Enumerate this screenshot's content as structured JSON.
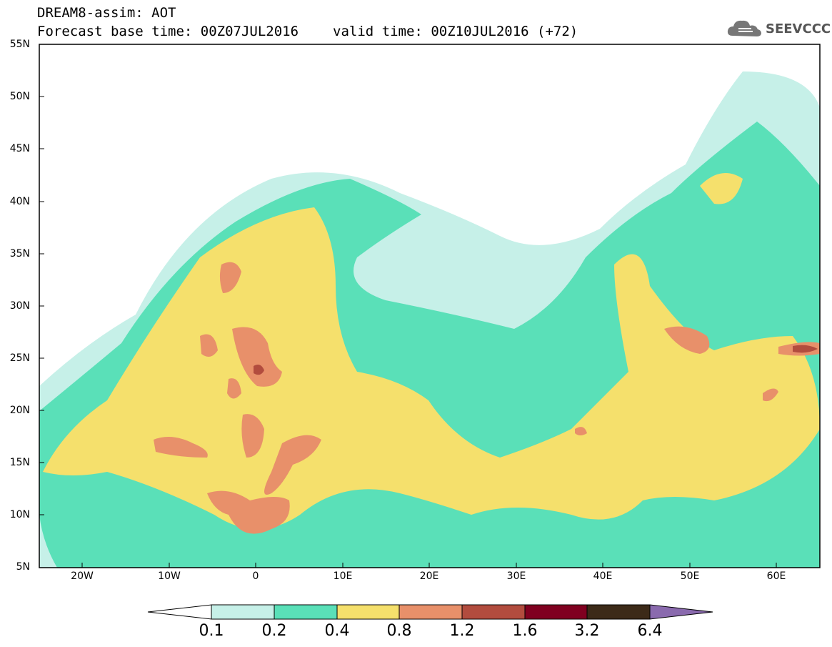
{
  "header": {
    "title_line1": "DREAM8-assim: AOT",
    "base_time": "Forecast base time: 00Z07JUL2016",
    "valid_time": "valid time: 00Z10JUL2016 (+72)"
  },
  "logo": {
    "text": "SEEVCCC",
    "icon": "cloud-icon"
  },
  "map": {
    "lat_labels": [
      "55N",
      "50N",
      "45N",
      "40N",
      "35N",
      "30N",
      "25N",
      "20N",
      "15N",
      "10N",
      "5N"
    ],
    "lon_labels": [
      "20W",
      "10W",
      "0",
      "10E",
      "20E",
      "30E",
      "40E",
      "50E",
      "60E"
    ],
    "lat_range": [
      5,
      55
    ],
    "lon_range": [
      -25,
      65
    ]
  },
  "legend": {
    "labels": [
      "0.1",
      "0.2",
      "0.4",
      "0.8",
      "1.2",
      "1.6",
      "3.2",
      "6.4"
    ],
    "colors": [
      "#ffffff",
      "#c6f0e8",
      "#5ae0b8",
      "#f5e06c",
      "#e8906a",
      "#b24c3e",
      "#800020",
      "#3c2a18",
      "#8a6aae"
    ]
  }
}
